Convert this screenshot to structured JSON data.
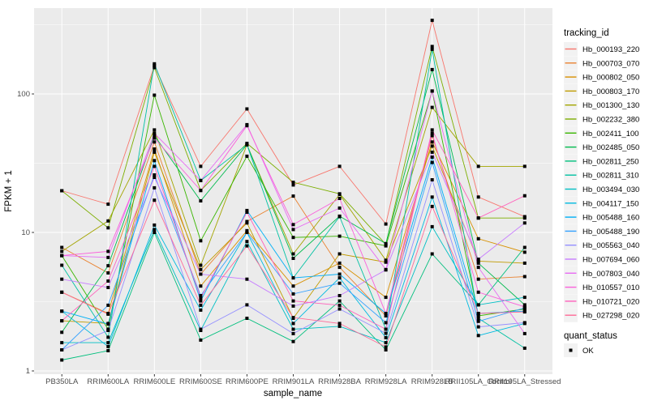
{
  "figure": {
    "y_axis_title": "FPKM + 1",
    "x_axis_title": "sample_name",
    "legend": {
      "tracking_title": "tracking_id",
      "quant_title": "quant_status",
      "quant_ok_label": "OK"
    }
  },
  "colors": {
    "panel_bg": "#EBEBEB",
    "grid_major": "#FFFFFF",
    "grid_minor": "#FFFFFF",
    "axis_text": "#4D4D4D",
    "axis_title": "#000000",
    "tick_mark": "#333333",
    "legend_key_bg": "#F2F2F2",
    "marker": "#000000"
  },
  "chart_data": {
    "type": "line",
    "title": "",
    "xlabel": "sample_name",
    "ylabel": "FPKM + 1",
    "y_scale": "log10",
    "ylim": [
      0.95,
      420
    ],
    "y_ticks": [
      1,
      10,
      100
    ],
    "y_minor_ticks": [
      3.162,
      31.62,
      316.2
    ],
    "grid": true,
    "legend_position": "right",
    "marker": {
      "shape": "square",
      "color": "#000000",
      "status_label": "OK"
    },
    "categories": [
      "PB350LA",
      "RRIM600LA",
      "RRIM600LE",
      "RRIM600SE",
      "RRIM600PE",
      "RRIM901LA",
      "RRIM928BA",
      "RRIM928LA",
      "RRIM928LB",
      "RRII105LA_Control",
      "RRII105LA_Stressed"
    ],
    "series": [
      {
        "name": "Hb_000193_220",
        "color": "#F8766D",
        "values": [
          20,
          16,
          160,
          30,
          78,
          22,
          30,
          11.5,
          340,
          18,
          13
        ]
      },
      {
        "name": "Hb_000703_070",
        "color": "#EA8331",
        "values": [
          7.8,
          5.1,
          45,
          5.0,
          12,
          18.3,
          5.6,
          2.5,
          50,
          4.6,
          4.8
        ]
      },
      {
        "name": "Hb_000802_050",
        "color": "#D89000",
        "values": [
          3.7,
          2.6,
          40,
          4.1,
          10.3,
          4.1,
          6.0,
          3.4,
          45,
          9.0,
          7.2
        ]
      },
      {
        "name": "Hb_000803_170",
        "color": "#C09B00",
        "values": [
          2.3,
          2.2,
          38,
          5.4,
          11.7,
          2.4,
          7.0,
          6.1,
          42,
          6.2,
          6.0
        ]
      },
      {
        "name": "Hb_001300_130",
        "color": "#A3A500",
        "values": [
          7.3,
          12.1,
          55,
          5.8,
          43,
          7.0,
          18.8,
          6.3,
          80,
          30,
          30
        ]
      },
      {
        "name": "Hb_002232_380",
        "color": "#7CAE00",
        "values": [
          20,
          10.8,
          155,
          20.1,
          44,
          23,
          19,
          8.2,
          220,
          12.7,
          12.7
        ]
      },
      {
        "name": "Hb_002411_100",
        "color": "#39B600",
        "values": [
          6.8,
          2.0,
          98,
          8.7,
          35.5,
          9.2,
          9.4,
          8.0,
          105,
          2.5,
          2.8
        ]
      },
      {
        "name": "Hb_002485_050",
        "color": "#00BB4E",
        "values": [
          1.9,
          5.75,
          50,
          16.9,
          43,
          6.5,
          13.1,
          8.3,
          150,
          6.0,
          3.0
        ]
      },
      {
        "name": "Hb_002811_250",
        "color": "#00BF7D",
        "values": [
          1.2,
          1.4,
          10,
          1.67,
          2.4,
          1.63,
          3.2,
          1.42,
          7,
          3.0,
          7.8
        ]
      },
      {
        "name": "Hb_002811_310",
        "color": "#00C1A3",
        "values": [
          5.8,
          1.75,
          165,
          23.7,
          43,
          4.7,
          13,
          2.0,
          210,
          2.4,
          1.46
        ]
      },
      {
        "name": "Hb_003494_030",
        "color": "#00BFC4",
        "values": [
          1.6,
          1.6,
          10.5,
          1.96,
          8.6,
          2.0,
          2.1,
          1.6,
          11,
          3.0,
          3.4
        ]
      },
      {
        "name": "Hb_004117_150",
        "color": "#00BAE0",
        "values": [
          2.7,
          1.5,
          11.3,
          2.75,
          10,
          2.2,
          4.7,
          1.74,
          18,
          1.8,
          2.2
        ]
      },
      {
        "name": "Hb_005488_160",
        "color": "#00B0F6",
        "values": [
          2.7,
          2.18,
          33,
          3.2,
          14.4,
          4.7,
          5.0,
          2.6,
          35,
          2.6,
          2.7
        ]
      },
      {
        "name": "Hb_005488_190",
        "color": "#35A2FF",
        "values": [
          1.42,
          2.98,
          26,
          3.5,
          10,
          3.6,
          4.3,
          2.23,
          32,
          2.28,
          2.85
        ]
      },
      {
        "name": "Hb_005563_040",
        "color": "#9590FF",
        "values": [
          1.42,
          1.96,
          21,
          2.0,
          3.0,
          1.86,
          2.8,
          1.87,
          24,
          2.08,
          2.23
        ]
      },
      {
        "name": "Hb_007694_060",
        "color": "#C77CFF",
        "values": [
          4.6,
          4.0,
          25,
          5.0,
          4.6,
          2.94,
          3.5,
          5.36,
          38,
          6.4,
          11.7
        ]
      },
      {
        "name": "Hb_007803_040",
        "color": "#E76BF3",
        "values": [
          6.8,
          6.6,
          52,
          23.7,
          60,
          10.5,
          15,
          5.4,
          105,
          5.6,
          1.86
        ]
      },
      {
        "name": "Hb_010557_010",
        "color": "#FA62DB",
        "values": [
          6.8,
          7.3,
          48,
          20.1,
          59,
          11.4,
          17.6,
          2.6,
          52,
          3.7,
          2.9
        ]
      },
      {
        "name": "Hb_010721_020",
        "color": "#FF62BC",
        "values": [
          2.3,
          4.46,
          30,
          3.36,
          14,
          3.2,
          2.98,
          2.0,
          55,
          12.7,
          18.4
        ]
      },
      {
        "name": "Hb_027298_020",
        "color": "#FF6A98",
        "values": [
          3.7,
          2.57,
          17.1,
          2.98,
          8.0,
          2.43,
          2.2,
          1.49,
          15.4,
          2.6,
          2.67
        ]
      }
    ]
  }
}
